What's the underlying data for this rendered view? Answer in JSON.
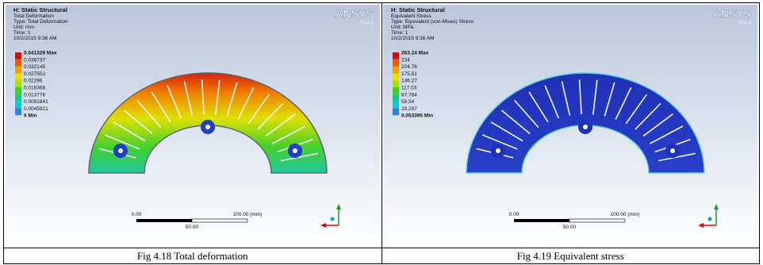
{
  "figures": [
    {
      "header": [
        "H: Static Structural",
        "Total Deformation",
        "Type: Total Deformation",
        "Unit: mm",
        "Time: 1",
        "10/2/2015 9:36 AM"
      ],
      "logo": "ANSYS",
      "version": "R14.5",
      "legend": [
        "0.041329 Max",
        "0.036737",
        "0.032145",
        "0.027552",
        "0.02296",
        "0.018368",
        "0.013776",
        "0.0091841",
        "0.0045921",
        "0 Min"
      ],
      "scale": {
        "left": "0.00",
        "right": "100.00 (mm)",
        "middle": "50.00"
      },
      "caption": "Fig 4.18 Total deformation"
    },
    {
      "header": [
        "H: Static Structural",
        "Equivalent Stress",
        "Type: Equivalent (von-Mises) Stress",
        "Unit: MPa",
        "Time: 1",
        "10/2/2015 9:36 AM"
      ],
      "logo": "ANSYS",
      "version": "R14.5",
      "legend": [
        "263.24 Max",
        "234",
        "204.76",
        "175.51",
        "146.27",
        "117.03",
        "87.784",
        "58.54",
        "29.297",
        "0.053395 Min"
      ],
      "scale": {
        "left": "0.00",
        "right": "100.00 (mm)",
        "middle": "50.00"
      },
      "caption": "Fig 4.19 Equivalent stress"
    }
  ]
}
